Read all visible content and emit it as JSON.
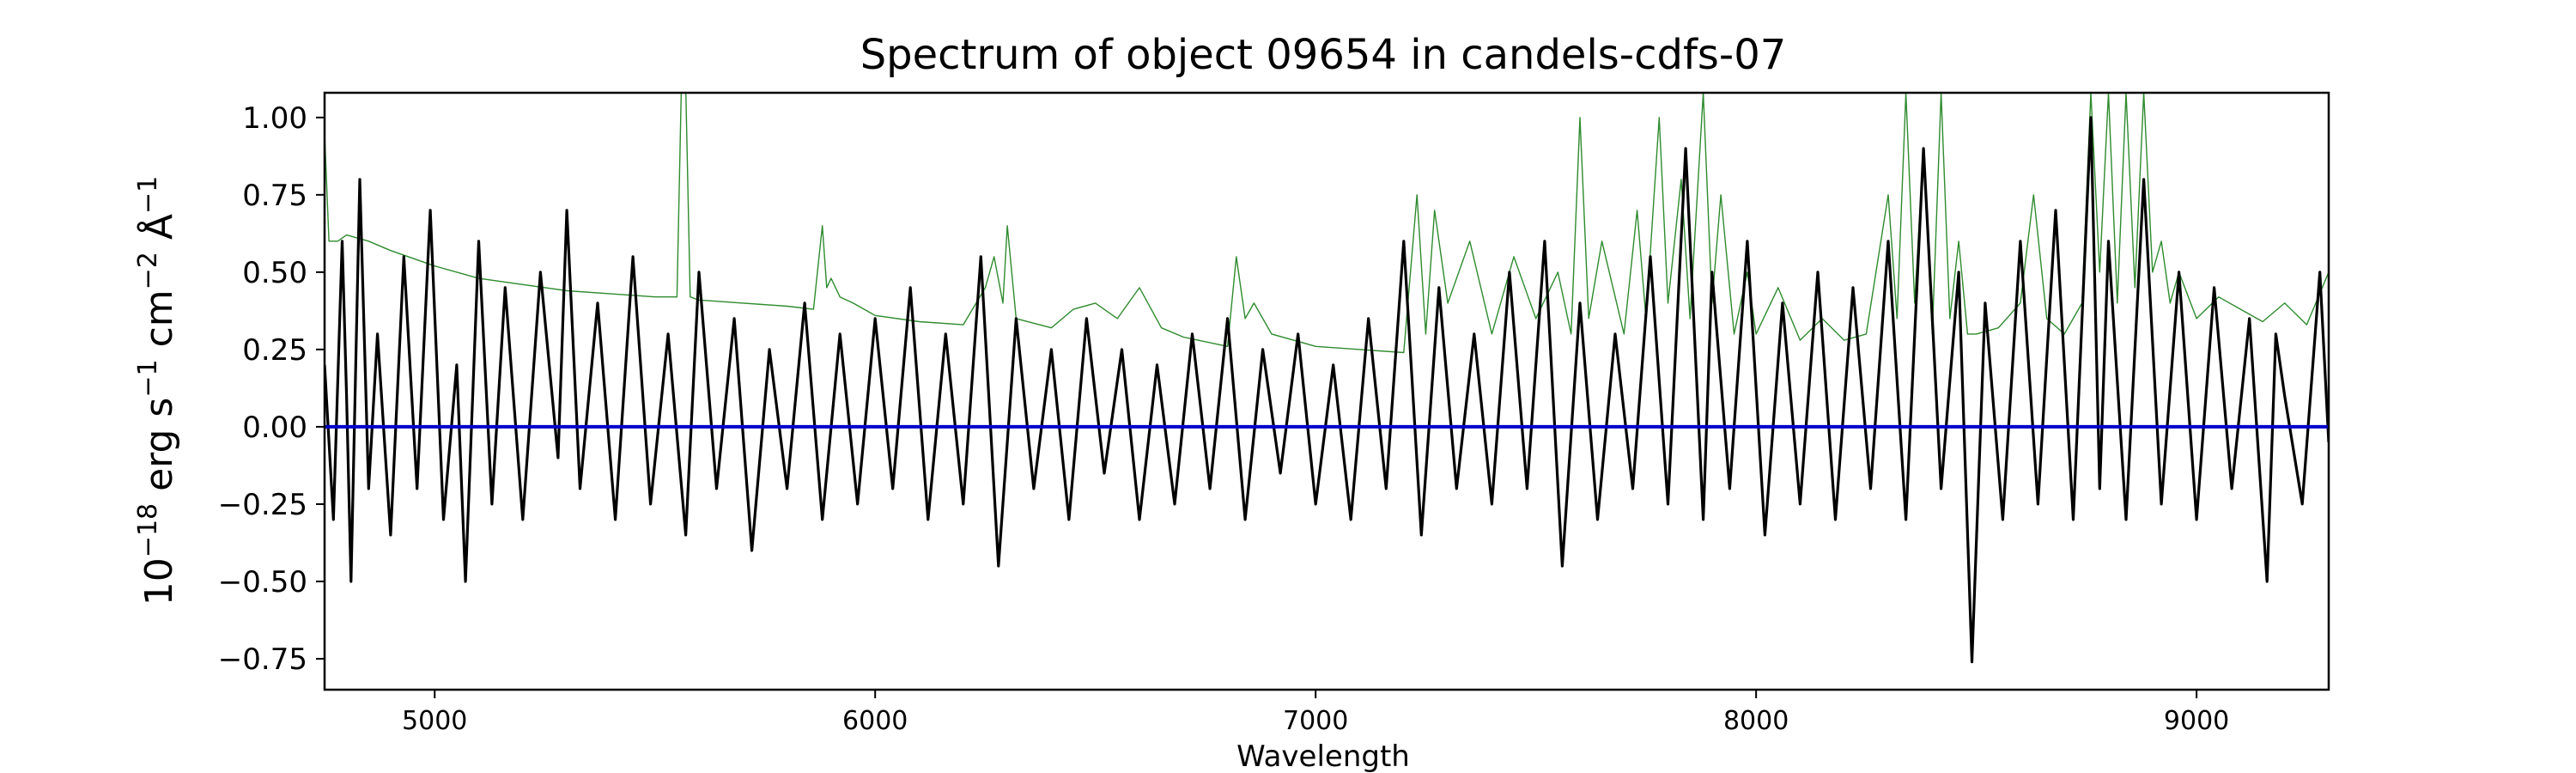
{
  "chart_data": {
    "type": "line",
    "title": "Spectrum of object 09654 in candels-cdfs-07",
    "xlabel": "Wavelength",
    "ylabel_parts": {
      "base": "10",
      "exp": "−18",
      "unit1": " erg s",
      "exp1": "−1",
      "unit2": " cm",
      "exp2": "−2",
      "unit3": " Å",
      "exp3": "−1"
    },
    "xlim": [
      4750,
      9300
    ],
    "ylim": [
      -0.85,
      1.08
    ],
    "xticks": [
      5000,
      6000,
      7000,
      8000,
      9000
    ],
    "xtick_labels": [
      "5000",
      "6000",
      "7000",
      "8000",
      "9000"
    ],
    "yticks": [
      -0.75,
      -0.5,
      -0.25,
      0.0,
      0.25,
      0.5,
      0.75,
      1.0
    ],
    "ytick_labels": [
      "−0.75",
      "−0.50",
      "−0.25",
      "0.00",
      "0.25",
      "0.50",
      "0.75",
      "1.00"
    ],
    "grid": false,
    "series": [
      {
        "color": "#000000",
        "style": "thick",
        "x": [
          4750,
          4770,
          4790,
          4800,
          4810,
          4830,
          4850,
          4870,
          4900,
          4930,
          4960,
          4990,
          5020,
          5050,
          5070,
          5100,
          5130,
          5160,
          5200,
          5240,
          5280,
          5300,
          5330,
          5370,
          5410,
          5450,
          5490,
          5530,
          5570,
          5600,
          5640,
          5680,
          5720,
          5760,
          5800,
          5840,
          5880,
          5920,
          5960,
          6000,
          6040,
          6080,
          6120,
          6160,
          6200,
          6240,
          6280,
          6320,
          6360,
          6400,
          6440,
          6480,
          6520,
          6560,
          6600,
          6640,
          6680,
          6720,
          6760,
          6800,
          6840,
          6880,
          6920,
          6960,
          7000,
          7040,
          7080,
          7120,
          7160,
          7200,
          7240,
          7280,
          7320,
          7360,
          7400,
          7440,
          7480,
          7520,
          7560,
          7600,
          7640,
          7680,
          7720,
          7760,
          7800,
          7840,
          7880,
          7900,
          7940,
          7980,
          8020,
          8060,
          8100,
          8140,
          8180,
          8220,
          8260,
          8300,
          8340,
          8380,
          8420,
          8460,
          8490,
          8520,
          8560,
          8600,
          8640,
          8680,
          8720,
          8760,
          8780,
          8800,
          8840,
          8880,
          8920,
          8960,
          9000,
          9040,
          9080,
          9120,
          9160,
          9180,
          9200,
          9240,
          9280,
          9300
        ],
        "y": [
          0.2,
          -0.3,
          0.6,
          0.1,
          -0.5,
          0.8,
          -0.2,
          0.3,
          -0.35,
          0.55,
          -0.2,
          0.7,
          -0.3,
          0.2,
          -0.5,
          0.6,
          -0.25,
          0.45,
          -0.3,
          0.5,
          -0.1,
          0.7,
          -0.2,
          0.4,
          -0.3,
          0.55,
          -0.25,
          0.3,
          -0.35,
          0.5,
          -0.2,
          0.35,
          -0.4,
          0.25,
          -0.2,
          0.4,
          -0.3,
          0.3,
          -0.25,
          0.35,
          -0.2,
          0.45,
          -0.3,
          0.3,
          -0.25,
          0.55,
          -0.45,
          0.35,
          -0.2,
          0.25,
          -0.3,
          0.35,
          -0.15,
          0.25,
          -0.3,
          0.2,
          -0.25,
          0.3,
          -0.2,
          0.35,
          -0.3,
          0.25,
          -0.15,
          0.3,
          -0.25,
          0.2,
          -0.3,
          0.35,
          -0.2,
          0.6,
          -0.35,
          0.45,
          -0.2,
          0.3,
          -0.25,
          0.5,
          -0.2,
          0.6,
          -0.45,
          0.4,
          -0.3,
          0.3,
          -0.2,
          0.55,
          -0.25,
          0.9,
          -0.3,
          0.5,
          -0.2,
          0.6,
          -0.35,
          0.4,
          -0.25,
          0.5,
          -0.3,
          0.45,
          -0.2,
          0.6,
          -0.3,
          0.9,
          -0.2,
          0.5,
          -0.76,
          0.4,
          -0.3,
          0.6,
          -0.25,
          0.7,
          -0.3,
          1.0,
          -0.2,
          0.6,
          -0.3,
          0.8,
          -0.25,
          0.5,
          -0.3,
          0.45,
          -0.2,
          0.35,
          -0.5,
          0.3,
          0.1,
          -0.25,
          0.5,
          -0.05
        ]
      },
      {
        "color": "#2e8b2e",
        "style": "thin",
        "x": [
          4750,
          4760,
          4780,
          4800,
          4850,
          4900,
          5000,
          5100,
          5200,
          5300,
          5400,
          5500,
          5550,
          5560,
          5570,
          5580,
          5600,
          5700,
          5800,
          5860,
          5880,
          5890,
          5900,
          5920,
          5950,
          6000,
          6100,
          6200,
          6250,
          6270,
          6290,
          6300,
          6320,
          6400,
          6450,
          6500,
          6550,
          6600,
          6650,
          6700,
          6800,
          6820,
          6840,
          6860,
          6900,
          6950,
          7000,
          7100,
          7200,
          7230,
          7250,
          7270,
          7300,
          7350,
          7400,
          7450,
          7500,
          7550,
          7580,
          7600,
          7620,
          7650,
          7700,
          7730,
          7750,
          7780,
          7800,
          7830,
          7850,
          7880,
          7900,
          7920,
          7950,
          7980,
          8000,
          8050,
          8100,
          8150,
          8200,
          8250,
          8300,
          8320,
          8340,
          8360,
          8380,
          8400,
          8420,
          8440,
          8460,
          8480,
          8500,
          8550,
          8600,
          8630,
          8660,
          8700,
          8740,
          8760,
          8780,
          8800,
          8820,
          8840,
          8860,
          8880,
          8900,
          8920,
          8940,
          8960,
          9000,
          9050,
          9100,
          9150,
          9200,
          9250,
          9300
        ],
        "y": [
          0.95,
          0.6,
          0.6,
          0.62,
          0.6,
          0.57,
          0.52,
          0.48,
          0.46,
          0.44,
          0.43,
          0.42,
          0.42,
          1.1,
          1.1,
          0.42,
          0.41,
          0.4,
          0.39,
          0.38,
          0.65,
          0.45,
          0.48,
          0.42,
          0.4,
          0.36,
          0.34,
          0.33,
          0.45,
          0.55,
          0.4,
          0.65,
          0.35,
          0.32,
          0.38,
          0.4,
          0.35,
          0.45,
          0.32,
          0.29,
          0.26,
          0.55,
          0.35,
          0.4,
          0.3,
          0.28,
          0.26,
          0.25,
          0.24,
          0.75,
          0.3,
          0.7,
          0.4,
          0.6,
          0.3,
          0.55,
          0.35,
          0.5,
          0.3,
          1.0,
          0.35,
          0.6,
          0.3,
          0.7,
          0.35,
          1.0,
          0.4,
          0.8,
          0.35,
          1.08,
          0.4,
          0.75,
          0.3,
          0.5,
          0.3,
          0.45,
          0.28,
          0.35,
          0.28,
          0.3,
          0.75,
          0.35,
          1.08,
          0.4,
          0.9,
          0.3,
          1.08,
          0.35,
          0.6,
          0.3,
          0.3,
          0.32,
          0.4,
          0.75,
          0.35,
          0.3,
          0.4,
          1.08,
          0.5,
          1.08,
          0.4,
          1.08,
          0.45,
          1.08,
          0.5,
          0.6,
          0.4,
          0.5,
          0.35,
          0.42,
          0.38,
          0.34,
          0.4,
          0.33,
          0.5
        ]
      },
      {
        "color": "#0000cc",
        "style": "zero",
        "x": [
          4750,
          9300
        ],
        "y": [
          0.0,
          0.0
        ]
      }
    ]
  }
}
